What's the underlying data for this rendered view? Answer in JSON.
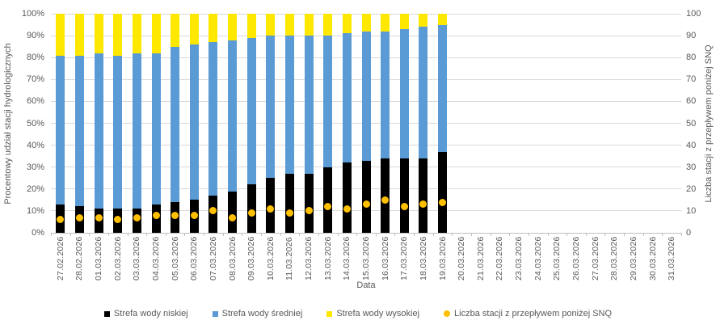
{
  "chart_data": {
    "type": "bar",
    "stacked": true,
    "grid": "horizontal",
    "legend_position": "bottom",
    "xlabel": "Data",
    "ylabel_left": "Procentowy udział stacji hydrologicznych",
    "ylabel_right": "Liczba stacji z przepływem poniżej SNQ",
    "ylim": [
      0,
      100
    ],
    "y_left_tick_suffix": "%",
    "y_ticks": [
      0,
      10,
      20,
      30,
      40,
      50,
      60,
      70,
      80,
      90,
      100
    ],
    "categories": [
      "27.02.2026",
      "28.02.2026",
      "01.03.2026",
      "02.03.2026",
      "03.03.2026",
      "04.03.2026",
      "05.03.2026",
      "06.03.2026",
      "07.03.2026",
      "08.03.2026",
      "09.03.2026",
      "10.03.2026",
      "11.03.2026",
      "12.03.2026",
      "13.03.2026",
      "14.03.2026",
      "15.03.2026",
      "16.03.2026",
      "17.03.2026",
      "18.03.2026",
      "19.03.2026",
      "20.03.2026",
      "21.03.2026",
      "22.03.2026",
      "23.03.2026",
      "24.03.2026",
      "25.03.2026",
      "26.03.2026",
      "27.03.2026",
      "28.03.2026",
      "29.03.2026",
      "30.03.2026",
      "31.03.2026"
    ],
    "series": [
      {
        "name": "Strefa wody niskiej",
        "kind": "bar",
        "color": "#000000",
        "values": [
          13,
          12,
          11,
          11,
          11,
          13,
          14,
          15,
          17,
          19,
          22,
          25,
          27,
          27,
          30,
          32,
          33,
          34,
          34,
          34,
          37,
          null,
          null,
          null,
          null,
          null,
          null,
          null,
          null,
          null,
          null,
          null,
          null
        ]
      },
      {
        "name": "Strefa wody średniej",
        "kind": "bar",
        "color": "#5B9BD5",
        "values": [
          68,
          69,
          71,
          70,
          71,
          69,
          71,
          71,
          70,
          69,
          67,
          65,
          63,
          63,
          60,
          59,
          59,
          58,
          59,
          60,
          58,
          null,
          null,
          null,
          null,
          null,
          null,
          null,
          null,
          null,
          null,
          null,
          null
        ]
      },
      {
        "name": "Strefa wody wysokiej",
        "kind": "bar",
        "color": "#FFE800",
        "values": [
          19,
          19,
          18,
          19,
          18,
          18,
          15,
          14,
          13,
          12,
          11,
          10,
          10,
          10,
          10,
          9,
          8,
          8,
          7,
          6,
          5,
          null,
          null,
          null,
          null,
          null,
          null,
          null,
          null,
          null,
          null,
          null,
          null
        ]
      },
      {
        "name": "Liczba stacji z przepływem poniżej SNQ",
        "kind": "scatter",
        "color": "#FFC000",
        "values": [
          6,
          7,
          7,
          6,
          7,
          8,
          8,
          8,
          10,
          7,
          9,
          11,
          9,
          10,
          12,
          11,
          13,
          15,
          12,
          13,
          14,
          null,
          null,
          null,
          null,
          null,
          null,
          null,
          null,
          null,
          null,
          null,
          null
        ]
      }
    ]
  },
  "colors": {
    "gridline": "#d9d9d9",
    "axis_line": "#bfbfbf",
    "text": "#595959",
    "background": "#ffffff"
  }
}
